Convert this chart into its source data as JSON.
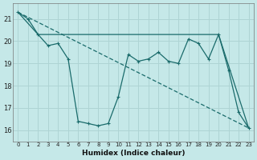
{
  "xlabel": "Humidex (Indice chaleur)",
  "background_color": "#c5e8e8",
  "grid_color": "#aed4d4",
  "line_color": "#1a6b6b",
  "xlim": [
    -0.5,
    23.5
  ],
  "ylim": [
    15.5,
    21.7
  ],
  "yticks": [
    16,
    17,
    18,
    19,
    20,
    21
  ],
  "xticks": [
    0,
    1,
    2,
    3,
    4,
    5,
    6,
    7,
    8,
    9,
    10,
    11,
    12,
    13,
    14,
    15,
    16,
    17,
    18,
    19,
    20,
    21,
    22,
    23
  ],
  "line1_x": [
    0,
    1,
    2,
    3,
    4,
    5,
    6,
    7,
    8,
    9,
    10,
    11,
    12,
    13,
    14,
    15,
    16,
    17,
    18,
    19,
    20,
    21,
    22,
    23
  ],
  "line1_y": [
    21.3,
    21.0,
    20.3,
    19.8,
    19.9,
    19.2,
    16.4,
    16.3,
    16.2,
    16.3,
    17.5,
    19.4,
    19.1,
    19.2,
    19.5,
    19.1,
    19.0,
    20.1,
    19.9,
    19.2,
    20.3,
    18.7,
    16.8,
    16.1
  ],
  "line2_x": [
    0,
    2,
    20,
    23
  ],
  "line2_y": [
    21.3,
    20.3,
    20.3,
    16.1
  ],
  "line3_x": [
    0,
    23
  ],
  "line3_y": [
    21.3,
    16.1
  ]
}
